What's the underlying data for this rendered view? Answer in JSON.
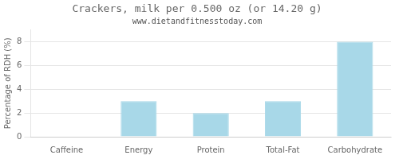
{
  "chart_data": {
    "type": "bar",
    "title": "Crackers, milk per 0.500 oz (or 14.20 g)",
    "subtitle": "www.dietandfitnesstoday.com",
    "categories": [
      "Caffeine",
      "Energy",
      "Protein",
      "Total-Fat",
      "Carbohydrate"
    ],
    "values": [
      0,
      3,
      2,
      3,
      8
    ],
    "color": "#a8d8e8",
    "ylabel": "Percentage of RDH (%)",
    "ylim": [
      0,
      9
    ],
    "yticks": [
      0,
      2,
      4,
      6,
      8
    ],
    "grid": true
  }
}
